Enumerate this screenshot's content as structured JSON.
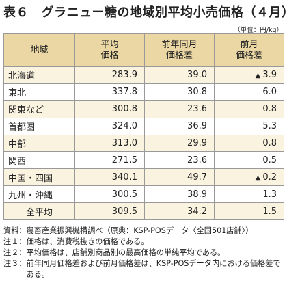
{
  "title": "表６　グラニュー糖の地域別平均小売価格（４月）",
  "unit": "（単位：円/kg）",
  "table": {
    "headers": {
      "region": "地域",
      "avg": [
        "平均",
        "価格"
      ],
      "yoy": [
        "前年同月",
        "価格差"
      ],
      "mom": [
        "前月",
        "価格差"
      ]
    },
    "rows": [
      {
        "region": "北海道",
        "avg": "283.9",
        "yoy": "39.0",
        "mom_mark": "▲",
        "mom": "3.9"
      },
      {
        "region": "東北",
        "avg": "337.8",
        "yoy": "30.8",
        "mom_mark": "",
        "mom": "6.0"
      },
      {
        "region": "関東など",
        "avg": "300.8",
        "yoy": "23.6",
        "mom_mark": "",
        "mom": "0.8"
      },
      {
        "region": "首都圏",
        "avg": "324.0",
        "yoy": "36.9",
        "mom_mark": "",
        "mom": "5.3"
      },
      {
        "region": "中部",
        "avg": "313.0",
        "yoy": "29.9",
        "mom_mark": "",
        "mom": "0.8"
      },
      {
        "region": "関西",
        "avg": "271.5",
        "yoy": "23.6",
        "mom_mark": "",
        "mom": "0.5"
      },
      {
        "region": "中国・四国",
        "avg": "340.1",
        "yoy": "49.7",
        "mom_mark": "▲",
        "mom": "0.2"
      },
      {
        "region": "九州・沖縄",
        "avg": "300.5",
        "yoy": "38.9",
        "mom_mark": "",
        "mom": "1.3"
      },
      {
        "region": "全平均",
        "avg": "309.5",
        "yoy": "34.2",
        "mom_mark": "",
        "mom": "1.5"
      }
    ]
  },
  "notes": [
    {
      "label": "資料：",
      "text": "農畜産業振興機構調べ（原典：KSP-POSデータ〈全国501店舗〉）"
    },
    {
      "label": "注１：",
      "text": "価格は、消費税抜きの価格である。"
    },
    {
      "label": "注２：",
      "text": "平均価格は、店舗別商品別の最高価格の単純平均である。"
    },
    {
      "label": "注３：",
      "text": "前年同月価格差および前月価格差は、KSP-POSデータ内における価格差である。"
    }
  ]
}
